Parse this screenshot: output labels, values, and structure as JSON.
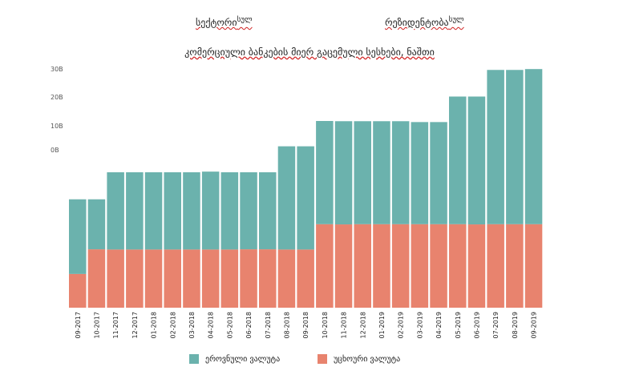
{
  "header": {
    "left_label": "სექტორი",
    "left_sup": "სულ",
    "right_label": "რეზიდენტობა",
    "right_sup": "სულ"
  },
  "colors": {
    "national": "#6bb2ad",
    "foreign": "#e8836e"
  },
  "chart_data": {
    "type": "bar",
    "stacked": true,
    "title": "კომერციული ბანკების მიერ გაცემული სესხები, ნაშთი",
    "ytick_labels": [
      "30B",
      "20B",
      "10B",
      "0B"
    ],
    "categories": [
      "09-2017",
      "10-2017",
      "11-2017",
      "12-2017",
      "01-2018",
      "02-2018",
      "03-2018",
      "04-2018",
      "05-2018",
      "06-2018",
      "07-2018",
      "08-2018",
      "09-2018",
      "10-2018",
      "11-2018",
      "12-2018",
      "01-2019",
      "02-2019",
      "03-2019",
      "04-2019",
      "05-2019",
      "06-2019",
      "07-2019",
      "08-2019",
      "09-2019"
    ],
    "series": [
      {
        "name": "უცხოური ვალუტა",
        "values": [
          15.6,
          27.0,
          26.9,
          26.9,
          26.9,
          26.9,
          26.9,
          26.9,
          26.9,
          27.0,
          27.0,
          26.9,
          26.9,
          38.6,
          38.5,
          38.6,
          38.6,
          38.6,
          38.6,
          38.6,
          38.6,
          38.5,
          38.6,
          38.6,
          38.6
        ]
      },
      {
        "name": "ეროვნული ვალუტა",
        "values": [
          34.5,
          23.1,
          35.7,
          35.7,
          35.7,
          35.7,
          35.7,
          36.0,
          35.7,
          35.6,
          35.6,
          47.7,
          47.7,
          47.7,
          47.7,
          47.6,
          47.6,
          47.6,
          47.2,
          47.2,
          59.0,
          59.1,
          71.3,
          71.3,
          71.7
        ]
      }
    ]
  }
}
